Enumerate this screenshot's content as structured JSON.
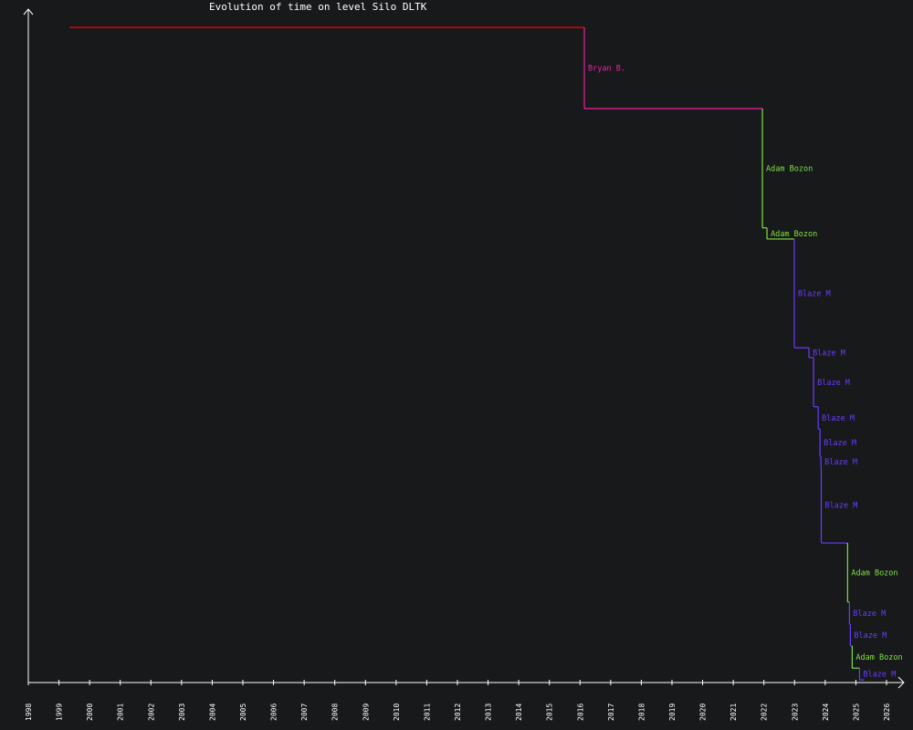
{
  "chart_data": {
    "type": "line",
    "subtype": "step",
    "title": "Evolution of time on level Silo DLTK",
    "xlabel": "",
    "ylabel": "",
    "x_unit": "year",
    "xlim": [
      1998,
      2026
    ],
    "x_ticks": [
      "1998",
      "1999",
      "2000",
      "2001",
      "2002",
      "2003",
      "2004",
      "2005",
      "2006",
      "2007",
      "2008",
      "2009",
      "2010",
      "2011",
      "2012",
      "2013",
      "2014",
      "2015",
      "2016",
      "2017",
      "2018",
      "2019",
      "2020",
      "2021",
      "2022",
      "2023",
      "2024",
      "2025",
      "2026"
    ],
    "y_ticks": [],
    "y_note_relative": "no y scale printed; times given relative to the first record (1.0)",
    "grid": false,
    "legend": "none",
    "end_x": 2025.27,
    "colors": {
      "initial": "#ff0000",
      "Bryan B.": "#f020a0",
      "Adam Bozon": "#80e040",
      "Blaze M": "#6a3cff"
    },
    "records": [
      {
        "x": 1999.34,
        "y": 1.0,
        "holder": ""
      },
      {
        "x": 2016.14,
        "y": 0.876,
        "holder": "Bryan B."
      },
      {
        "x": 2021.95,
        "y": 0.694,
        "holder": "Adam Bozon"
      },
      {
        "x": 2022.1,
        "y": 0.677,
        "holder": "Adam Bozon"
      },
      {
        "x": 2022.99,
        "y": 0.511,
        "holder": "Blaze M"
      },
      {
        "x": 2023.47,
        "y": 0.496,
        "holder": "Blaze M"
      },
      {
        "x": 2023.62,
        "y": 0.421,
        "holder": "Blaze M"
      },
      {
        "x": 2023.77,
        "y": 0.387,
        "holder": "Blaze M"
      },
      {
        "x": 2023.83,
        "y": 0.345,
        "holder": "Blaze M"
      },
      {
        "x": 2023.86,
        "y": 0.329,
        "holder": "Blaze M"
      },
      {
        "x": 2023.87,
        "y": 0.213,
        "holder": "Blaze M"
      },
      {
        "x": 2024.73,
        "y": 0.123,
        "holder": "Adam Bozon"
      },
      {
        "x": 2024.79,
        "y": 0.089,
        "holder": "Blaze M"
      },
      {
        "x": 2024.82,
        "y": 0.056,
        "holder": "Blaze M"
      },
      {
        "x": 2024.88,
        "y": 0.022,
        "holder": "Adam Bozon"
      },
      {
        "x": 2025.12,
        "y": 0.004,
        "holder": "Blaze M"
      }
    ]
  }
}
